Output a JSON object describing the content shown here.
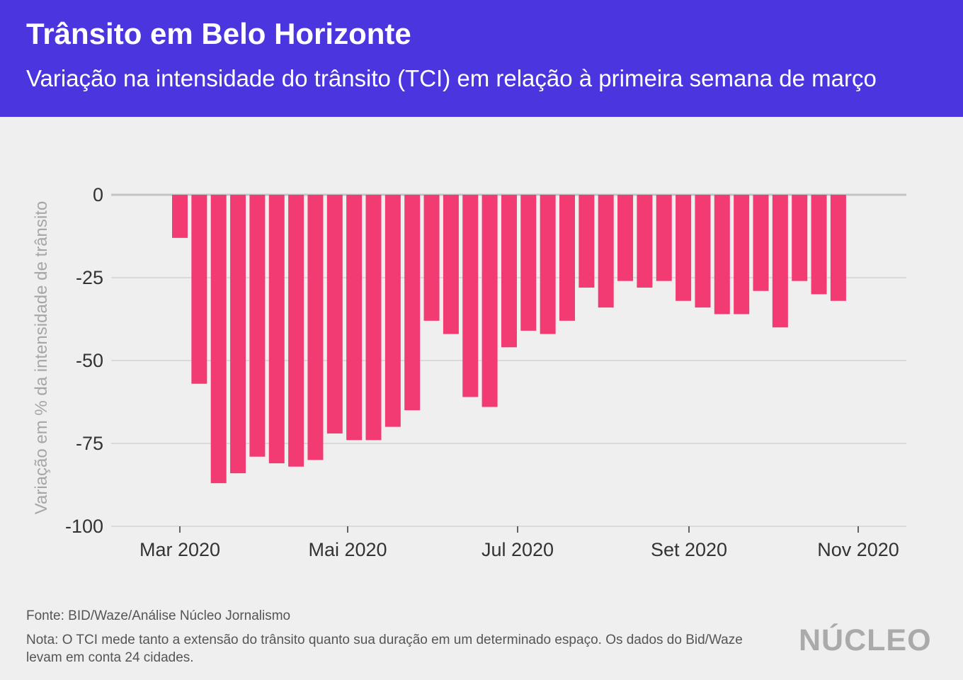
{
  "header": {
    "title": "Trânsito em Belo Horizonte",
    "subtitle": "Variação na intensidade do trânsito (TCI) em relação à primeira semana de março"
  },
  "chart_data": {
    "type": "bar",
    "ylabel": "Variação em % da intensidade de trânsito",
    "ylim": [
      -100,
      0
    ],
    "yticks": [
      0,
      -25,
      -50,
      -75,
      -100
    ],
    "ytick_labels": [
      "0",
      "-25",
      "-50",
      "-75",
      "-100"
    ],
    "x_ticks": [
      "Mar 2020",
      "Mai 2020",
      "Jul 2020",
      "Set 2020",
      "Nov 2020"
    ],
    "grid": true,
    "bar_color": "#f23b73",
    "x_frequency": "weekly",
    "values": [
      -13,
      -57,
      -87,
      -84,
      -79,
      -81,
      -82,
      -80,
      -72,
      -74,
      -74,
      -70,
      -65,
      -38,
      -42,
      -61,
      -64,
      -46,
      -41,
      -42,
      -38,
      -28,
      -34,
      -26,
      -28,
      -26,
      -32,
      -34,
      -36,
      -36,
      -29,
      -40,
      -26,
      -30,
      -32
    ]
  },
  "footer": {
    "source": "Fonte: BID/Waze/Análise Núcleo Jornalismo",
    "note": "Nota: O TCI mede tanto a extensão do trânsito quanto sua duração em um determinado espaço. Os dados do Bid/Waze levam em conta 24 cidades.",
    "logo": "NÚCLEO"
  },
  "colors": {
    "header_bg": "#4a35de",
    "background": "#efefef",
    "bar": "#f23b73"
  }
}
